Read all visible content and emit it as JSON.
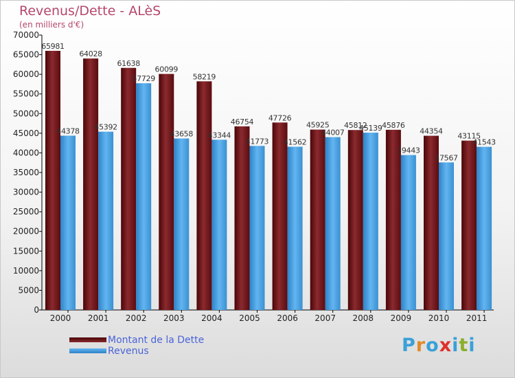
{
  "title": "Revenus/Dette - ALèS",
  "subtitle": "(en milliers d'€)",
  "colors": {
    "dette": "#7a1a1e",
    "revenus": "#4aa3e6",
    "title": "#b5476a",
    "legend_text": "#4a63d8"
  },
  "chart_data": {
    "type": "bar",
    "title": "Revenus/Dette - ALèS",
    "ylabel": "(en milliers d'€)",
    "xlabel": "",
    "ylim": [
      0,
      70000
    ],
    "yticks": [
      0,
      5000,
      10000,
      15000,
      20000,
      25000,
      30000,
      35000,
      40000,
      45000,
      50000,
      55000,
      60000,
      65000,
      70000
    ],
    "categories": [
      "2000",
      "2001",
      "2002",
      "2003",
      "2004",
      "2005",
      "2006",
      "2007",
      "2008",
      "2009",
      "2010",
      "2011"
    ],
    "series": [
      {
        "name": "Montant de la Dette",
        "values": [
          65981,
          64028,
          61638,
          60099,
          58219,
          46754,
          47726,
          45925,
          45812,
          45876,
          44354,
          43115
        ]
      },
      {
        "name": "Revenus",
        "values": [
          44378,
          45392,
          57729,
          43658,
          43344,
          41773,
          41562,
          44007,
          45139,
          39443,
          37567,
          41543
        ]
      }
    ],
    "grid": false,
    "legend_position": "bottom-left"
  },
  "legend": {
    "dette_label": "Montant de la Dette",
    "revenus_label": "Revenus"
  },
  "logo": {
    "text": "Proxiti",
    "letters": [
      "P",
      "r",
      "o",
      "x",
      "i",
      "t",
      "i"
    ],
    "letter_colors": [
      "#3aa0d8",
      "#e08a2a",
      "#3aa0d8",
      "#e0302a",
      "#3aa0d8",
      "#8ab02a",
      "#3aa0d8"
    ]
  }
}
